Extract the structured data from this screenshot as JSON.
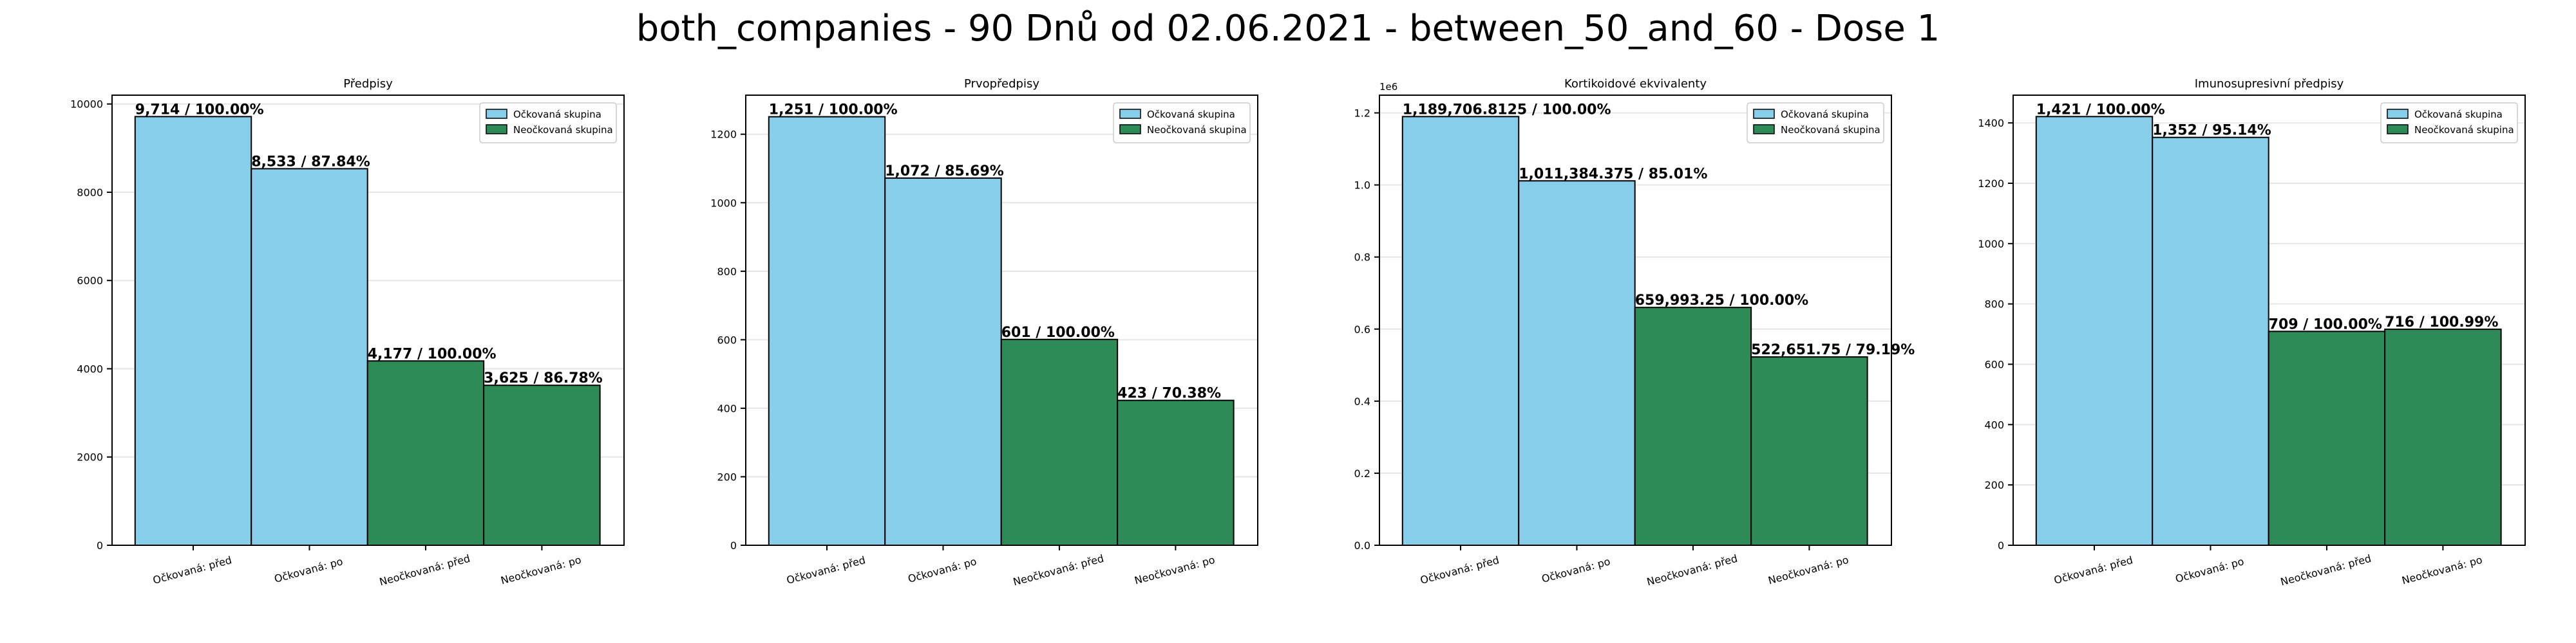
{
  "suptitle": "both_companies - 90 Dnů od 02.06.2021 - between_50_and_60 - Dose 1",
  "legend": {
    "position": "upper-right",
    "vaccinated": "Očkovaná skupina",
    "unvaccinated": "Neočkovaná skupina"
  },
  "colors": {
    "vaccinated": "#87ceeb",
    "unvaccinated": "#2e8b57",
    "edge": "#000000"
  },
  "chart_data": [
    {
      "type": "bar",
      "title": "Předpisy",
      "categories": [
        "Očkovaná: před",
        "Očkovaná: po",
        "Neočkovaná: před",
        "Neočkovaná: po"
      ],
      "values": [
        9714,
        8533,
        4177,
        3625
      ],
      "labels": [
        "9,714 / 100.00%",
        "8,533 / 87.84%",
        "4,177 / 100.00%",
        "3,625 / 86.78%"
      ],
      "ylim": [
        0,
        10200
      ],
      "yticks": [
        0,
        2000,
        4000,
        6000,
        8000,
        10000
      ],
      "ytick_labels": [
        "0",
        "2000",
        "4000",
        "6000",
        "8000",
        "10000"
      ],
      "offset_text": "",
      "grid": true
    },
    {
      "type": "bar",
      "title": "Prvopředpisy",
      "categories": [
        "Očkovaná: před",
        "Očkovaná: po",
        "Neočkovaná: před",
        "Neočkovaná: po"
      ],
      "values": [
        1251,
        1072,
        601,
        423
      ],
      "labels": [
        "1,251 / 100.00%",
        "1,072 / 85.69%",
        "601 / 100.00%",
        "423 / 70.38%"
      ],
      "ylim": [
        0,
        1314
      ],
      "yticks": [
        0,
        200,
        400,
        600,
        800,
        1000,
        1200
      ],
      "ytick_labels": [
        "0",
        "200",
        "400",
        "600",
        "800",
        "1000",
        "1200"
      ],
      "offset_text": "",
      "grid": true
    },
    {
      "type": "bar",
      "title": "Kortikoidové ekvivalenty",
      "categories": [
        "Očkovaná: před",
        "Očkovaná: po",
        "Neočkovaná: před",
        "Neočkovaná: po"
      ],
      "values": [
        1189706.8125,
        1011384.375,
        659993.25,
        522651.75
      ],
      "labels": [
        "1,189,706.8125 / 100.00%",
        "1,011,384.375 / 85.01%",
        "659,993.25 / 100.00%",
        "522,651.75 / 79.19%"
      ],
      "ylim": [
        0,
        1249192
      ],
      "yticks": [
        0,
        200000,
        400000,
        600000,
        800000,
        1000000,
        1200000
      ],
      "ytick_labels": [
        "0.0",
        "0.2",
        "0.4",
        "0.6",
        "0.8",
        "1.0",
        "1.2"
      ],
      "offset_text": "1e6",
      "grid": true
    },
    {
      "type": "bar",
      "title": "Imunosupresivní předpisy",
      "categories": [
        "Očkovaná: před",
        "Očkovaná: po",
        "Neočkovaná: před",
        "Neočkovaná: po"
      ],
      "values": [
        1421,
        1352,
        709,
        716
      ],
      "labels": [
        "1,421 / 100.00%",
        "1,352 / 95.14%",
        "709 / 100.00%",
        "716 / 100.99%"
      ],
      "ylim": [
        0,
        1492
      ],
      "yticks": [
        0,
        200,
        400,
        600,
        800,
        1000,
        1200,
        1400
      ],
      "ytick_labels": [
        "0",
        "200",
        "400",
        "600",
        "800",
        "1000",
        "1200",
        "1400"
      ],
      "offset_text": "",
      "grid": true
    }
  ]
}
